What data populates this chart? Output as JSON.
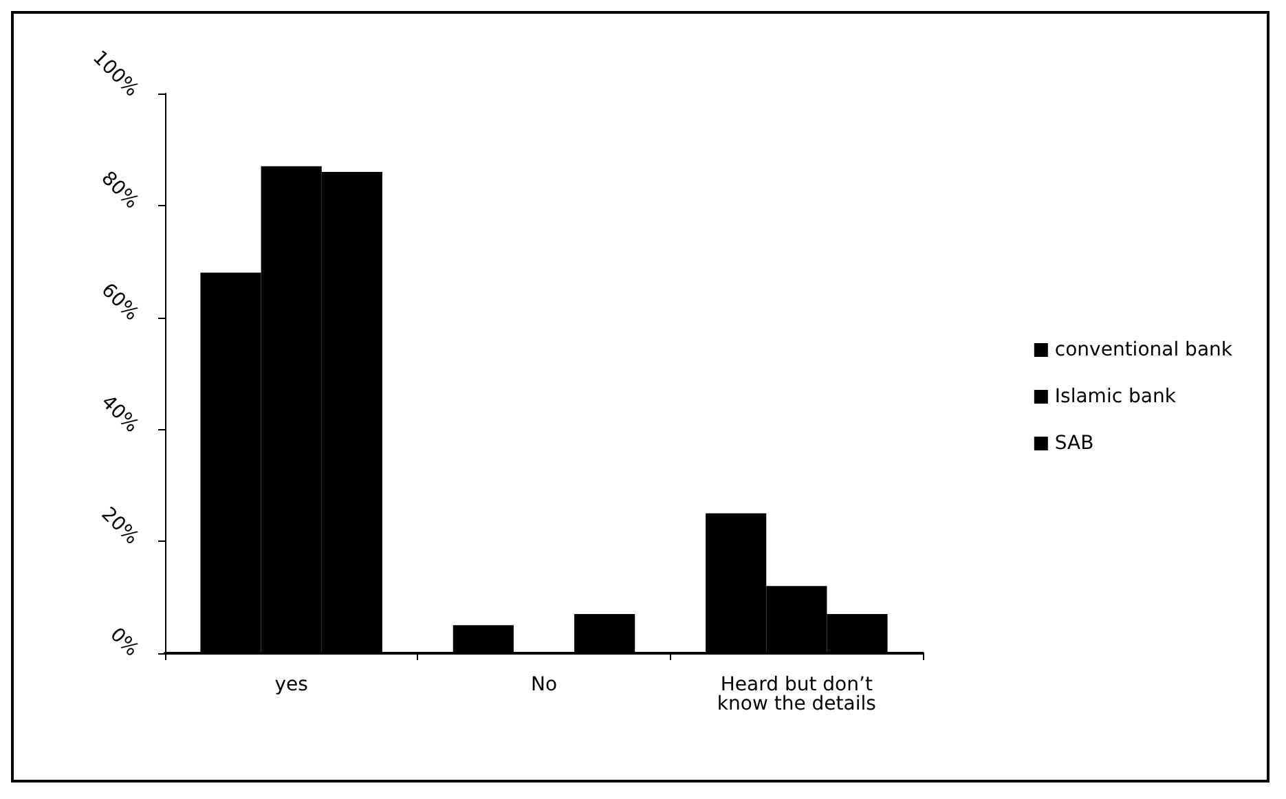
{
  "chart_data": {
    "type": "bar",
    "categories": [
      "yes",
      "No",
      "Heard but don’t\nknow the details"
    ],
    "series": [
      {
        "name": "conventional bank",
        "color": "#000000",
        "values": [
          68,
          5,
          25
        ]
      },
      {
        "name": "Islamic bank",
        "color": "#000000",
        "values": [
          87,
          0,
          12
        ]
      },
      {
        "name": "SAB",
        "color": "#000000",
        "values": [
          86,
          7,
          7
        ]
      }
    ],
    "ylim": [
      0,
      100
    ],
    "yticks": [
      {
        "value": 0,
        "label": "0%"
      },
      {
        "value": 20,
        "label": "20%"
      },
      {
        "value": 40,
        "label": "40%"
      },
      {
        "value": 60,
        "label": "60%"
      },
      {
        "value": 80,
        "label": "80%"
      },
      {
        "value": 100,
        "label": "100%"
      }
    ],
    "grid": false,
    "legend": "right"
  }
}
